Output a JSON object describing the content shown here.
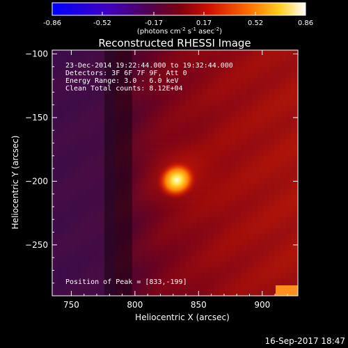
{
  "colorbar": {
    "tick_labels": [
      "-0.86",
      "-0.52",
      "-0.17",
      "0.17",
      "0.52",
      "0.86"
    ],
    "unit_base": "(photons cm",
    "unit_exp1": "-2",
    "unit_mid": " s",
    "unit_exp2": "-1",
    "unit_mid2": " asec",
    "unit_exp3": "-2",
    "unit_end": ")"
  },
  "chart_data": {
    "type": "heatmap",
    "title": "Reconstructed RHESSI Image",
    "xlabel": "Heliocentric X (arcsec)",
    "ylabel": "Heliocentric Y (arcsec)",
    "xlim": [
      735,
      928
    ],
    "ylim": [
      -290,
      -97
    ],
    "x_ticks": [
      750,
      800,
      850,
      900
    ],
    "y_ticks": [
      -100,
      -150,
      -200,
      -250
    ],
    "x_tick_labels": [
      "750",
      "800",
      "850",
      "900"
    ],
    "y_tick_labels": [
      "−100",
      "−150",
      "−200",
      "−250"
    ],
    "color_range": [
      -0.86,
      0.86
    ],
    "peak": {
      "x": 833,
      "y": -199
    },
    "annotations": [
      "23-Dec-2014 19:22:44.000 to 19:32:44.000",
      "Detectors: 3F 6F 7F 9F, Att 0",
      "Energy Range: 3.0 - 6.0 keV",
      "Clean    Total counts: 8.12E+04"
    ],
    "peak_label": "Position of Peak = [833,-199]"
  },
  "footer": {
    "timestamp": "16-Sep-2017 18:47"
  }
}
